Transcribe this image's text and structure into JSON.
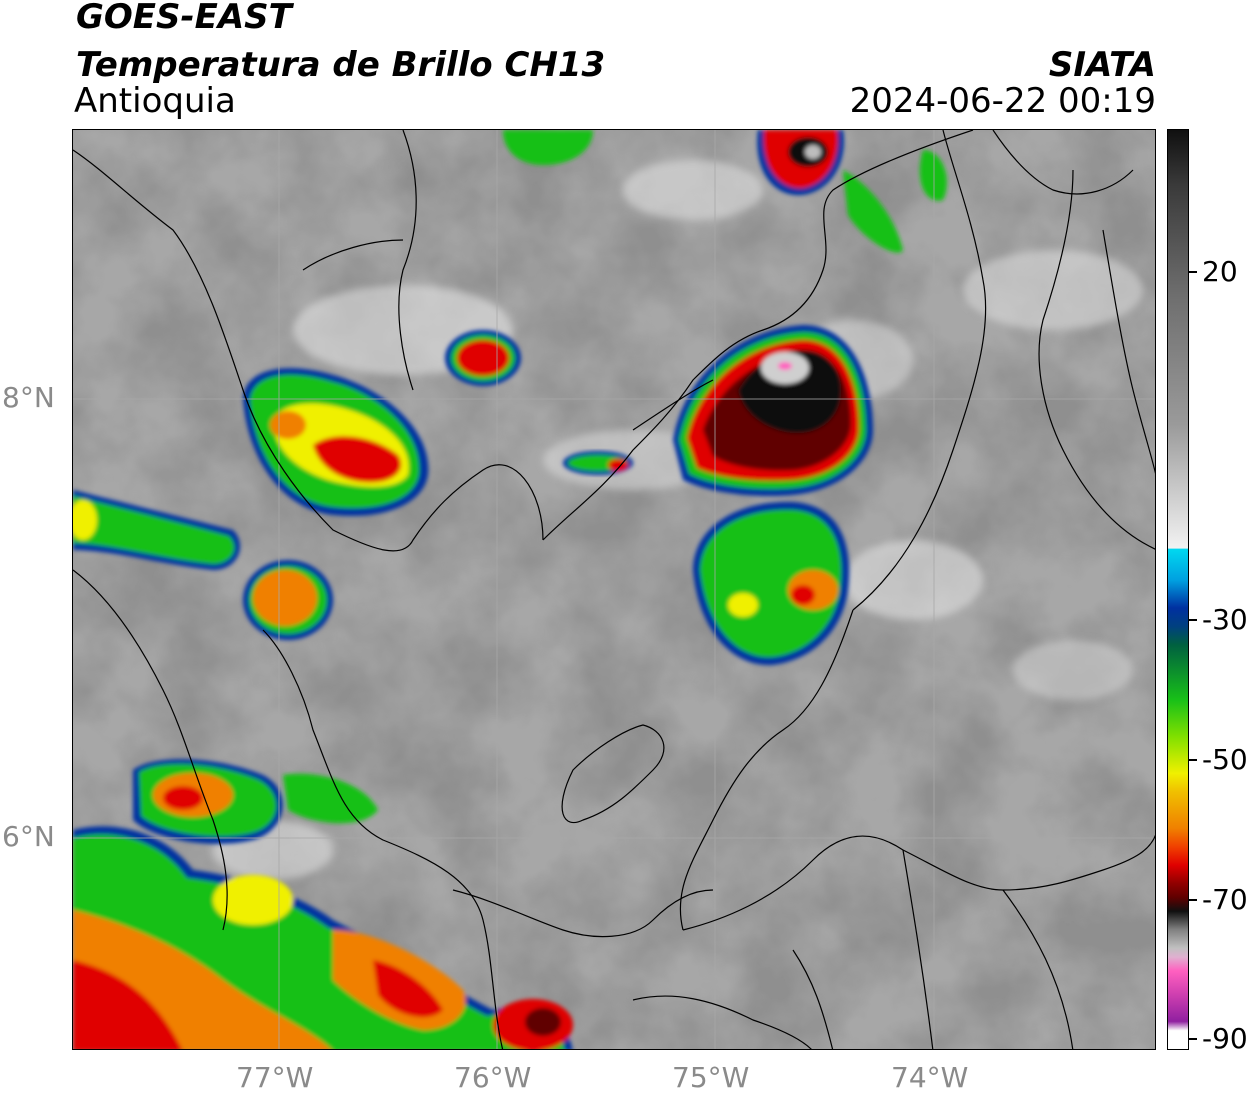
{
  "header": {
    "satellite": "GOES-EAST",
    "product": "Temperatura de Brillo CH13",
    "region": "Antioquia",
    "agency": "SIATA",
    "datetime": "2024-06-22 00:19"
  },
  "map": {
    "lat_labels": [
      "8°N",
      "6°N"
    ],
    "lon_labels": [
      "77°W",
      "76°W",
      "75°W",
      "74°W"
    ]
  },
  "colorbar": {
    "labels": [
      "20",
      "-30",
      "-50",
      "-70",
      "-90"
    ],
    "colors": {
      "warm_gray_low": "#6e6e6e",
      "warm_gray_high": "#f2f2f2",
      "cyan": "#00d8f0",
      "blue": "#0030a0",
      "green": "#18c018",
      "yellow": "#f0f000",
      "orange": "#f08000",
      "red": "#e00000",
      "darkred": "#600000",
      "black": "#101010",
      "pink": "#ff60c0",
      "purple": "#9020a0"
    }
  }
}
